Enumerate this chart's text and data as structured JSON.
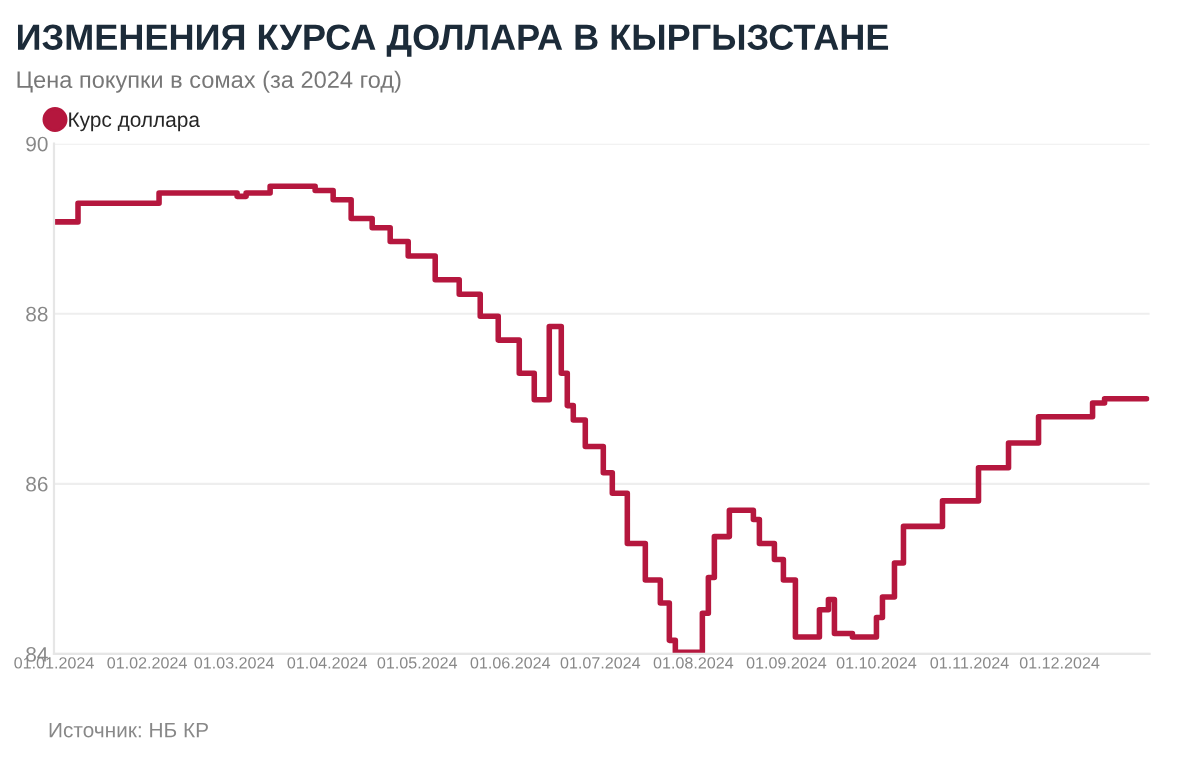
{
  "chart_data": {
    "type": "step",
    "title": "ИЗМЕНЕНИЯ КУРСА ДОЛЛАРА В КЫРГЫЗСТАНЕ",
    "subtitle": "Цена покупки в сомах (за 2024 год)",
    "annotations": [
      "Источник: НБ КР"
    ],
    "x": [
      "2024-01-01",
      "2024-01-09",
      "2024-02-05",
      "2024-03-02",
      "2024-03-05",
      "2024-03-13",
      "2024-03-28",
      "2024-04-03",
      "2024-04-09",
      "2024-04-16",
      "2024-04-22",
      "2024-04-28",
      "2024-05-07",
      "2024-05-15",
      "2024-05-22",
      "2024-05-28",
      "2024-06-04",
      "2024-06-09",
      "2024-06-14",
      "2024-06-18",
      "2024-06-20",
      "2024-06-22",
      "2024-06-26",
      "2024-07-02",
      "2024-07-05",
      "2024-07-10",
      "2024-07-16",
      "2024-07-21",
      "2024-07-24",
      "2024-07-26",
      "2024-08-04",
      "2024-08-06",
      "2024-08-08",
      "2024-08-13",
      "2024-08-21",
      "2024-08-23",
      "2024-08-28",
      "2024-08-31",
      "2024-09-04",
      "2024-09-12",
      "2024-09-15",
      "2024-09-17",
      "2024-09-23",
      "2024-10-01",
      "2024-10-03",
      "2024-10-07",
      "2024-10-10",
      "2024-10-23",
      "2024-11-04",
      "2024-11-14",
      "2024-11-24",
      "2024-12-12",
      "2024-12-16",
      "2024-12-30"
    ],
    "series": [
      {
        "name": "Курс доллара",
        "color": "#b5173e",
        "values": [
          89.08,
          89.3,
          89.42,
          89.38,
          89.42,
          89.5,
          89.45,
          89.34,
          89.12,
          89.01,
          88.85,
          88.68,
          88.4,
          88.23,
          87.97,
          87.69,
          87.3,
          86.99,
          87.85,
          87.3,
          86.92,
          86.75,
          86.44,
          86.13,
          85.89,
          85.3,
          84.87,
          84.6,
          84.16,
          84.02,
          84.48,
          84.9,
          85.38,
          85.69,
          85.58,
          85.3,
          85.11,
          84.87,
          84.2,
          84.52,
          84.64,
          84.24,
          84.2,
          84.43,
          84.67,
          85.07,
          85.5,
          85.8,
          86.19,
          86.48,
          86.79,
          86.95,
          87.0,
          87.0
        ]
      }
    ],
    "xlim": [
      "2024-01-01",
      "2024-12-31"
    ],
    "xticks": [
      {
        "value": "2024-01-01",
        "label": "01.01.2024"
      },
      {
        "value": "2024-02-01",
        "label": "01.02.2024"
      },
      {
        "value": "2024-03-01",
        "label": "01.03.2024"
      },
      {
        "value": "2024-04-01",
        "label": "01.04.2024"
      },
      {
        "value": "2024-05-01",
        "label": "01.05.2024"
      },
      {
        "value": "2024-06-01",
        "label": "01.06.2024"
      },
      {
        "value": "2024-07-01",
        "label": "01.07.2024"
      },
      {
        "value": "2024-08-01",
        "label": "01.08.2024"
      },
      {
        "value": "2024-09-01",
        "label": "01.09.2024"
      },
      {
        "value": "2024-10-01",
        "label": "01.10.2024"
      },
      {
        "value": "2024-11-01",
        "label": "01.11.2024"
      },
      {
        "value": "2024-12-01",
        "label": "01.12.2024"
      }
    ],
    "ylim": [
      84,
      90
    ],
    "yticks": [
      84,
      86,
      88,
      90
    ],
    "grid": "y",
    "legend": "top left",
    "marker": "none",
    "line_style": "solid"
  }
}
